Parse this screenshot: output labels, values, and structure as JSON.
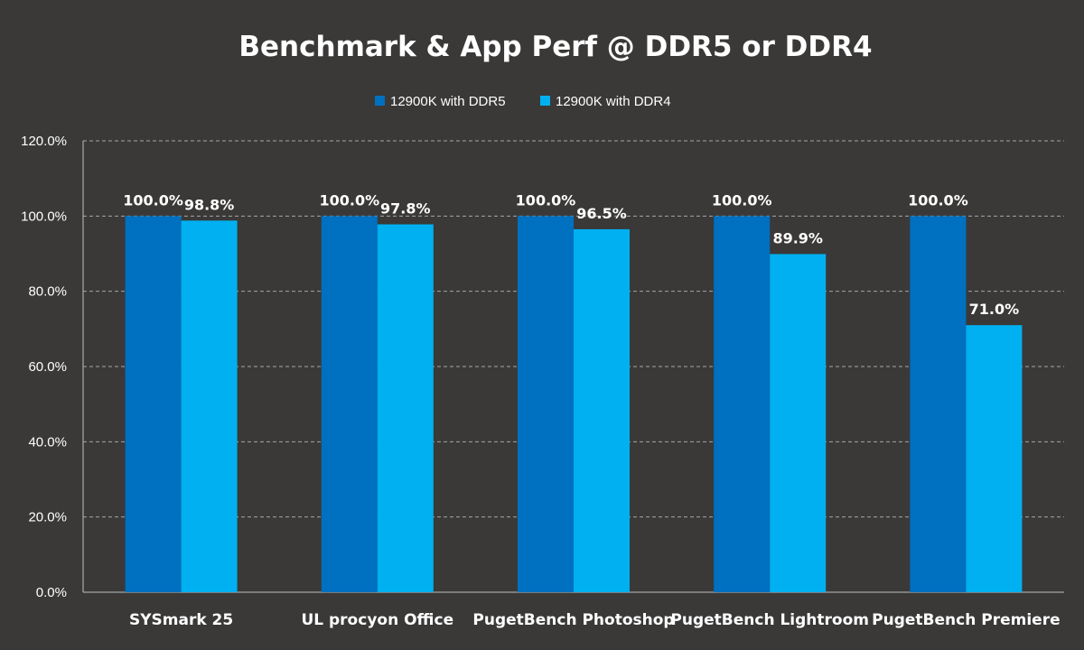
{
  "chart_data": {
    "type": "bar",
    "title": "Benchmark & App Perf @ DDR5 or DDR4",
    "xlabel": "",
    "ylabel": "",
    "ylim": [
      0,
      120
    ],
    "y_ticks": [
      "0.0%",
      "20.0%",
      "40.0%",
      "60.0%",
      "80.0%",
      "100.0%",
      "120.0%"
    ],
    "y_tick_values": [
      0,
      20,
      40,
      60,
      80,
      100,
      120
    ],
    "grid": true,
    "legend_position": "top-center",
    "categories": [
      "SYSmark 25",
      "UL procyon Office",
      "PugetBench Photoshop",
      "PugetBench Lightroom",
      "PugetBench Premiere"
    ],
    "series": [
      {
        "name": "12900K with DDR5",
        "color": "#0070c0",
        "values": [
          100.0,
          100.0,
          100.0,
          100.0,
          100.0
        ],
        "labels": [
          "100.0%",
          "100.0%",
          "100.0%",
          "100.0%",
          "100.0%"
        ]
      },
      {
        "name": "12900K with DDR4",
        "color": "#00b0f0",
        "values": [
          98.8,
          97.8,
          96.5,
          89.9,
          71.0
        ],
        "labels": [
          "98.8%",
          "97.8%",
          "96.5%",
          "89.9%",
          "71.0%"
        ]
      }
    ]
  },
  "colors": {
    "background": "#3a3938",
    "gridline": "#a6a6a6",
    "text": "#ffffff"
  }
}
